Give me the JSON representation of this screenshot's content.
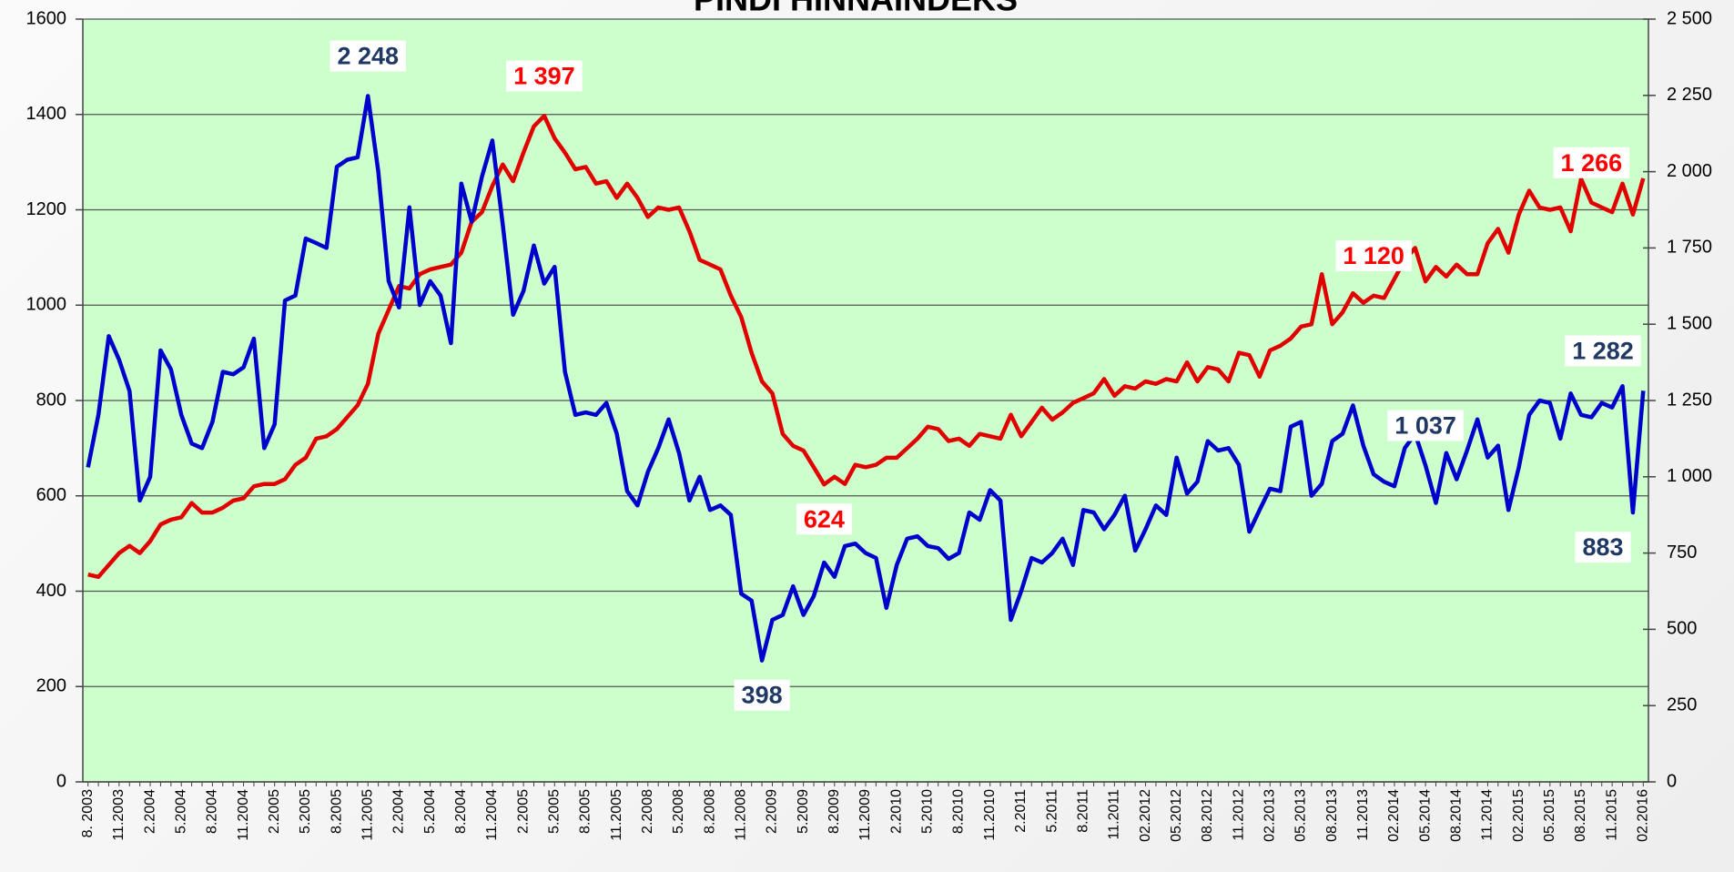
{
  "chart_data": {
    "type": "line",
    "title": "PINDI HINNAINDEKS",
    "categories": [
      "8. 2003",
      null,
      null,
      "11.2003",
      null,
      null,
      "2.2004",
      null,
      null,
      "5.2004",
      null,
      null,
      "8.2004",
      null,
      null,
      "11.2004",
      null,
      null,
      "2.2005",
      null,
      null,
      "5.2005",
      null,
      null,
      "8.2005",
      null,
      null,
      "11.2005",
      null,
      null,
      "2.2004",
      null,
      null,
      "5.2004",
      null,
      null,
      "8.2004",
      null,
      null,
      "11.2004",
      null,
      null,
      "2.2005",
      null,
      null,
      "5.2005",
      null,
      null,
      "8.2005",
      null,
      null,
      "11.2005",
      null,
      null,
      "2.2008",
      null,
      null,
      "5.2008",
      null,
      null,
      "8.2008",
      null,
      null,
      "11.2008",
      null,
      null,
      "2.2009",
      null,
      null,
      "5.2009",
      null,
      null,
      "8.2009",
      null,
      null,
      "11.2009",
      null,
      null,
      "2.2010",
      null,
      null,
      "5.2010",
      null,
      null,
      "8.2010",
      null,
      null,
      "11.2010",
      null,
      null,
      "2.2011",
      null,
      null,
      "5.2011",
      null,
      null,
      "8.2011",
      null,
      null,
      "11.2011",
      null,
      null,
      "02.2012",
      null,
      null,
      "05.2012",
      null,
      null,
      "08.2012",
      null,
      null,
      "11.2012",
      null,
      null,
      "02.2013",
      null,
      null,
      "05.2013",
      null,
      null,
      "08.2013",
      null,
      null,
      "11.2013",
      null,
      null,
      "02.2014",
      null,
      null,
      "05.2014",
      null,
      null,
      "08.2014",
      null,
      null,
      "11.2014",
      null,
      null,
      "02.2015",
      null,
      null,
      "05.2015",
      null,
      null,
      "08.2015",
      null,
      null,
      "11.2015",
      null,
      null,
      "02.2016"
    ],
    "series": [
      {
        "color": "#e00000",
        "label_color": "#ff0000",
        "axis": "y",
        "values": [
          435,
          430,
          455,
          480,
          495,
          480,
          505,
          540,
          550,
          555,
          585,
          565,
          565,
          575,
          590,
          595,
          620,
          625,
          625,
          635,
          665,
          680,
          720,
          725,
          740,
          765,
          790,
          835,
          940,
          990,
          1040,
          1035,
          1065,
          1075,
          1080,
          1085,
          1110,
          1175,
          1195,
          1250,
          1295,
          1260,
          1320,
          1375,
          1397,
          1350,
          1320,
          1285,
          1290,
          1255,
          1260,
          1225,
          1255,
          1225,
          1185,
          1205,
          1200,
          1205,
          1155,
          1095,
          1085,
          1075,
          1020,
          975,
          900,
          840,
          815,
          730,
          705,
          695,
          660,
          624,
          640,
          625,
          665,
          660,
          665,
          680,
          680,
          700,
          720,
          745,
          740,
          715,
          720,
          705,
          730,
          725,
          720,
          770,
          725,
          755,
          785,
          760,
          775,
          795,
          805,
          815,
          845,
          810,
          830,
          825,
          840,
          835,
          845,
          840,
          880,
          840,
          870,
          865,
          840,
          900,
          895,
          850,
          905,
          915,
          930,
          955,
          960,
          1065,
          960,
          985,
          1025,
          1005,
          1020,
          1015,
          1055,
          1095,
          1120,
          1050,
          1080,
          1060,
          1085,
          1065,
          1065,
          1130,
          1160,
          1110,
          1190,
          1240,
          1205,
          1200,
          1205,
          1155,
          1265,
          1215,
          1205,
          1195,
          1255,
          1190,
          1266
        ],
        "value_labels": [
          null,
          null,
          null,
          null,
          null,
          null,
          null,
          null,
          null,
          null,
          null,
          null,
          null,
          null,
          null,
          null,
          null,
          null,
          null,
          null,
          null,
          null,
          null,
          null,
          null,
          null,
          null,
          null,
          null,
          null,
          null,
          null,
          null,
          null,
          null,
          null,
          null,
          null,
          null,
          null,
          null,
          null,
          null,
          null,
          "1 397",
          null,
          null,
          null,
          null,
          null,
          null,
          null,
          null,
          null,
          null,
          null,
          null,
          null,
          null,
          null,
          null,
          null,
          null,
          null,
          null,
          null,
          null,
          null,
          null,
          null,
          null,
          "624",
          null,
          null,
          null,
          null,
          null,
          null,
          null,
          null,
          null,
          null,
          null,
          null,
          null,
          null,
          null,
          null,
          null,
          null,
          null,
          null,
          null,
          null,
          null,
          null,
          null,
          null,
          null,
          null,
          null,
          null,
          null,
          null,
          null,
          null,
          null,
          null,
          null,
          null,
          null,
          null,
          null,
          null,
          null,
          null,
          null,
          null,
          null,
          null,
          null,
          null,
          null,
          null,
          "1 120",
          null,
          null,
          null,
          null,
          null,
          null,
          null,
          null,
          null,
          null,
          null,
          null,
          null,
          null,
          null,
          null,
          null,
          null,
          null,
          null,
          "1 266"
        ]
      },
      {
        "color": "#0000cc",
        "label_color": "#1f3864",
        "axis": "y2",
        "values": [
          1031,
          1203,
          1461,
          1383,
          1281,
          922,
          1000,
          1414,
          1352,
          1203,
          1109,
          1094,
          1180,
          1344,
          1336,
          1359,
          1453,
          1094,
          1172,
          1578,
          1594,
          1781,
          1766,
          1750,
          2016,
          2039,
          2047,
          2248,
          2000,
          1641,
          1555,
          1883,
          1563,
          1641,
          1594,
          1438,
          1961,
          1836,
          1984,
          2102,
          1828,
          1531,
          1609,
          1758,
          1633,
          1688,
          1344,
          1203,
          1211,
          1203,
          1242,
          1141,
          953,
          906,
          1016,
          1094,
          1188,
          1078,
          922,
          1000,
          891,
          906,
          875,
          617,
          594,
          398,
          531,
          547,
          641,
          547,
          609,
          719,
          672,
          773,
          781,
          750,
          734,
          570,
          711,
          797,
          805,
          773,
          766,
          731,
          750,
          883,
          859,
          956,
          922,
          531,
          625,
          734,
          719,
          750,
          797,
          711,
          891,
          883,
          828,
          875,
          938,
          758,
          828,
          906,
          875,
          1063,
          945,
          984,
          1117,
          1086,
          1094,
          1039,
          820,
          891,
          961,
          953,
          1164,
          1180,
          938,
          977,
          1117,
          1141,
          1234,
          1102,
          1008,
          984,
          969,
          1094,
          1141,
          1037,
          914,
          1078,
          992,
          1086,
          1188,
          1063,
          1102,
          891,
          1031,
          1203,
          1250,
          1242,
          1125,
          1273,
          1203,
          1195,
          1242,
          1227,
          1297,
          883,
          1282
        ],
        "value_labels": [
          null,
          null,
          null,
          null,
          null,
          null,
          null,
          null,
          null,
          null,
          null,
          null,
          null,
          null,
          null,
          null,
          null,
          null,
          null,
          null,
          null,
          null,
          null,
          null,
          null,
          null,
          null,
          "2 248",
          null,
          null,
          null,
          null,
          null,
          null,
          null,
          null,
          null,
          null,
          null,
          null,
          null,
          null,
          null,
          null,
          null,
          null,
          null,
          null,
          null,
          null,
          null,
          null,
          null,
          null,
          null,
          null,
          null,
          null,
          null,
          null,
          null,
          null,
          null,
          null,
          null,
          "398",
          null,
          null,
          null,
          null,
          null,
          null,
          null,
          null,
          null,
          null,
          null,
          null,
          null,
          null,
          null,
          null,
          null,
          null,
          null,
          null,
          null,
          null,
          null,
          null,
          null,
          null,
          null,
          null,
          null,
          null,
          null,
          null,
          null,
          null,
          null,
          null,
          null,
          null,
          null,
          null,
          null,
          null,
          null,
          null,
          null,
          null,
          null,
          null,
          null,
          null,
          null,
          null,
          null,
          null,
          null,
          null,
          null,
          null,
          null,
          null,
          null,
          null,
          null,
          "1 037",
          null,
          null,
          null,
          null,
          null,
          null,
          null,
          null,
          null,
          null,
          null,
          null,
          null,
          null,
          null,
          null,
          null,
          null,
          null,
          "883",
          "1 282"
        ]
      }
    ],
    "ylim": [
      0,
      1600
    ],
    "yticks": [
      0,
      200,
      400,
      600,
      800,
      1000,
      1200,
      1400,
      1600
    ],
    "y2lim": [
      0,
      2500
    ],
    "y2ticks": [
      0,
      250,
      500,
      750,
      {
        "value": 1000,
        "label": "1 000"
      },
      {
        "value": 1250,
        "label": "1 250"
      },
      {
        "value": 1500,
        "label": "1 500"
      },
      {
        "value": 1750,
        "label": "1 750"
      },
      {
        "value": 2000,
        "label": "2 000"
      },
      {
        "value": 2250,
        "label": "2 250"
      },
      {
        "value": 2500,
        "label": "2 500"
      }
    ],
    "grid": true,
    "plot_color": "#ccffcc"
  }
}
